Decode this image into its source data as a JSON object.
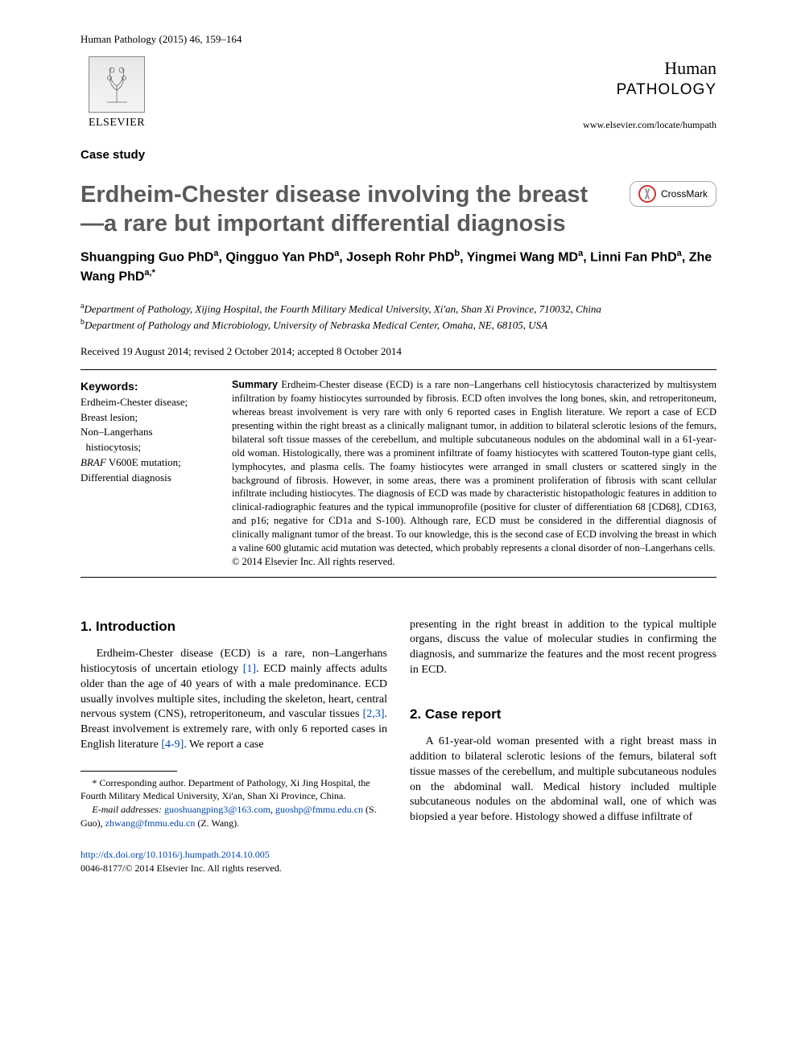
{
  "header": {
    "citation": "Human Pathology (2015) 46, 159–164",
    "publisher": "ELSEVIER",
    "journal_line1": "Human",
    "journal_line2": "PATHOLOGY",
    "journal_url": "www.elsevier.com/locate/humpath"
  },
  "article_type": "Case study",
  "title": "Erdheim-Chester disease involving the breast—a rare but important differential diagnosis",
  "crossmark_label": "CrossMark",
  "authors_html": "Shuangping Guo PhD|a|, Qingguo Yan PhD|a|, Joseph Rohr PhD|b|, Yingmei Wang MD|a|, Linni Fan PhD|a|, Zhe Wang PhD|a,*|",
  "affiliations": {
    "a": "Department of Pathology, Xijing Hospital, the Fourth Military Medical University, Xi'an, Shan Xi Province, 710032, China",
    "b": "Department of Pathology and Microbiology, University of Nebraska Medical Center, Omaha, NE, 68105, USA"
  },
  "dates": "Received 19 August 2014; revised 2 October 2014; accepted 8 October 2014",
  "keywords": {
    "heading": "Keywords:",
    "items": "Erdheim-Chester disease;\nBreast lesion;\nNon–Langerhans\n  histiocytosis;\nBRAF V600E mutation;\nDifferential diagnosis"
  },
  "summary": {
    "heading": "Summary",
    "body": "Erdheim-Chester disease (ECD) is a rare non–Langerhans cell histiocytosis characterized by multisystem infiltration by foamy histiocytes surrounded by fibrosis. ECD often involves the long bones, skin, and retroperitoneum, whereas breast involvement is very rare with only 6 reported cases in English literature. We report a case of ECD presenting within the right breast as a clinically malignant tumor, in addition to bilateral sclerotic lesions of the femurs, bilateral soft tissue masses of the cerebellum, and multiple subcutaneous nodules on the abdominal wall in a 61-year-old woman. Histologically, there was a prominent infiltrate of foamy histiocytes with scattered Touton-type giant cells, lymphocytes, and plasma cells. The foamy histiocytes were arranged in small clusters or scattered singly in the background of fibrosis. However, in some areas, there was a prominent proliferation of fibrosis with scant cellular infiltrate including histiocytes. The diagnosis of ECD was made by characteristic histopathologic features in addition to clinical-radiographic features and the typical immunoprofile (positive for cluster of differentiation 68 [CD68], CD163, and p16; negative for CD1a and S-100). Although rare, ECD must be considered in the differential diagnosis of clinically malignant tumor of the breast. To our knowledge, this is the second case of ECD involving the breast in which a valine 600 glutamic acid mutation was detected, which probably represents a clonal disorder of non–Langerhans cells.",
    "copyright": "© 2014 Elsevier Inc. All rights reserved."
  },
  "sections": {
    "intro_heading": "1. Introduction",
    "intro_p1_a": "Erdheim-Chester disease (ECD) is a rare, non–Langerhans histiocytosis of uncertain etiology ",
    "intro_ref1": "[1]",
    "intro_p1_b": ". ECD mainly affects adults older than the age of 40 years of with a male predominance. ECD usually involves multiple sites, including the skeleton, heart, central nervous system (CNS), retroperitoneum, and vascular tissues ",
    "intro_ref2": "[2,3]",
    "intro_p1_c": ". Breast involvement is extremely rare, with only 6 reported cases in English literature ",
    "intro_ref3": "[4-9]",
    "intro_p1_d": ". We report a case",
    "col2_top": "presenting in the right breast in addition to the typical multiple organs, discuss the value of molecular studies in confirming the diagnosis, and summarize the features and the most recent progress in ECD.",
    "case_heading": "2. Case report",
    "case_p1": "A 61-year-old woman presented with a right breast mass in addition to bilateral sclerotic lesions of the femurs, bilateral soft tissue masses of the cerebellum, and multiple subcutaneous nodules on the abdominal wall. Medical history included multiple subcutaneous nodules on the abdominal wall, one of which was biopsied a year before. Histology showed a diffuse infiltrate of"
  },
  "footnotes": {
    "corresp": "* Corresponding author. Department of Pathology, Xi Jing Hospital, the Fourth Military Medical University, Xi'an, Shan Xi Province, China.",
    "email_label": "E-mail addresses:",
    "email1": "guoshuangping3@163.com",
    "email2": "guoshp@fmmu.edu.cn",
    "email1_who": "(S. Guo),",
    "email3": "zhwang@fmmu.edu.cn",
    "email3_who": "(Z. Wang)."
  },
  "doi": {
    "url": "http://dx.doi.org/10.1016/j.humpath.2014.10.005",
    "issn_line": "0046-8177/© 2014 Elsevier Inc. All rights reserved."
  }
}
